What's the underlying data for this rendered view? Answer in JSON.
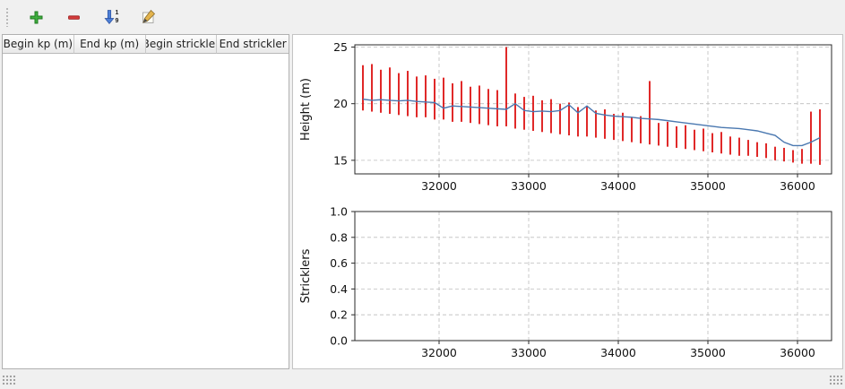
{
  "toolbar": {
    "buttons": [
      {
        "name": "add",
        "icon": "plus-icon"
      },
      {
        "name": "remove",
        "icon": "minus-icon"
      },
      {
        "name": "sort",
        "icon": "sort-numeric-down-icon"
      },
      {
        "name": "edit",
        "icon": "pencil-icon"
      }
    ],
    "sort_top": "1",
    "sort_bottom": "9"
  },
  "table": {
    "headers": [
      "Begin kp (m)",
      "End kp (m)",
      "Begin strickler",
      "End strickler"
    ],
    "rows": []
  },
  "colors": {
    "section_red": "#dd1111",
    "water_line_blue": "#4a78b0",
    "add_green": "#3fae3f",
    "remove_red": "#d23b3b",
    "sort_blue": "#4d7fd6"
  },
  "chart_data": [
    {
      "type": "line",
      "title": "",
      "xlabel": "",
      "ylabel": "Height (m)",
      "xlim": [
        31060,
        36380
      ],
      "ylim": [
        13.8,
        25.2
      ],
      "xticks": [
        32000,
        33000,
        34000,
        35000,
        36000
      ],
      "xtick_labels": [
        "32000",
        "33000",
        "34000",
        "35000",
        "36000"
      ],
      "yticks": [
        15,
        20,
        25
      ],
      "ytick_labels": [
        "15",
        "20",
        "25"
      ],
      "grid": "dashed",
      "legend": "none",
      "bar_color": "#dd1111",
      "sections": {
        "x": [
          31150,
          31250,
          31350,
          31450,
          31550,
          31650,
          31750,
          31850,
          31950,
          32050,
          32150,
          32250,
          32350,
          32450,
          32550,
          32650,
          32750,
          32850,
          32950,
          33050,
          33150,
          33250,
          33350,
          33450,
          33550,
          33650,
          33750,
          33850,
          33950,
          34050,
          34150,
          34250,
          34350,
          34450,
          34550,
          34650,
          34750,
          34850,
          34950,
          35050,
          35150,
          35250,
          35350,
          35450,
          35550,
          35650,
          35750,
          35850,
          35950,
          36050,
          36150,
          36250
        ],
        "high": [
          23.4,
          23.5,
          23.0,
          23.2,
          22.7,
          22.9,
          22.4,
          22.5,
          22.2,
          22.3,
          21.8,
          22.0,
          21.5,
          21.6,
          21.3,
          21.2,
          25.0,
          20.9,
          20.6,
          20.7,
          20.3,
          20.4,
          20.0,
          20.1,
          19.7,
          19.8,
          19.4,
          19.5,
          19.1,
          19.2,
          18.8,
          18.9,
          22.0,
          18.3,
          18.4,
          18.0,
          18.1,
          17.7,
          17.8,
          17.4,
          17.5,
          17.1,
          17.0,
          16.8,
          16.6,
          16.5,
          16.2,
          16.1,
          15.9,
          16.0,
          19.3,
          19.5
        ],
        "low": [
          19.4,
          19.3,
          19.2,
          19.1,
          19.0,
          18.9,
          18.8,
          18.8,
          18.6,
          18.6,
          18.4,
          18.4,
          18.3,
          18.2,
          18.1,
          18.0,
          18.0,
          17.8,
          17.7,
          17.6,
          17.5,
          17.4,
          17.3,
          17.2,
          17.1,
          17.1,
          17.0,
          16.9,
          16.8,
          16.7,
          16.6,
          16.5,
          16.4,
          16.3,
          16.2,
          16.1,
          16.0,
          15.9,
          15.8,
          15.7,
          15.6,
          15.5,
          15.4,
          15.4,
          15.3,
          15.2,
          15.0,
          14.9,
          14.8,
          14.7,
          14.7,
          14.6
        ]
      },
      "line": {
        "color": "#4a78b0",
        "y": [
          20.4,
          20.3,
          20.35,
          20.3,
          20.25,
          20.3,
          20.2,
          20.15,
          20.1,
          19.6,
          19.8,
          19.75,
          19.7,
          19.65,
          19.6,
          19.55,
          19.5,
          20.0,
          19.4,
          19.3,
          19.35,
          19.3,
          19.4,
          19.9,
          19.2,
          19.8,
          19.15,
          19.0,
          18.9,
          18.85,
          18.8,
          18.7,
          18.65,
          18.6,
          18.5,
          18.4,
          18.3,
          18.2,
          18.1,
          18.0,
          17.9,
          17.85,
          17.8,
          17.7,
          17.6,
          17.4,
          17.2,
          16.6,
          16.3,
          16.3,
          16.6,
          17.0
        ]
      }
    },
    {
      "type": "line",
      "title": "",
      "xlabel": "",
      "ylabel": "Stricklers",
      "xlim": [
        31060,
        36380
      ],
      "ylim": [
        0,
        1
      ],
      "xticks": [
        32000,
        33000,
        34000,
        35000,
        36000
      ],
      "xtick_labels": [
        "32000",
        "33000",
        "34000",
        "35000",
        "36000"
      ],
      "yticks": [
        0,
        0.2,
        0.4,
        0.6,
        0.8,
        1
      ],
      "ytick_labels": [
        "0.0",
        "0.2",
        "0.4",
        "0.6",
        "0.8",
        "1.0"
      ],
      "grid": "dashed",
      "legend": "none",
      "series": []
    }
  ]
}
